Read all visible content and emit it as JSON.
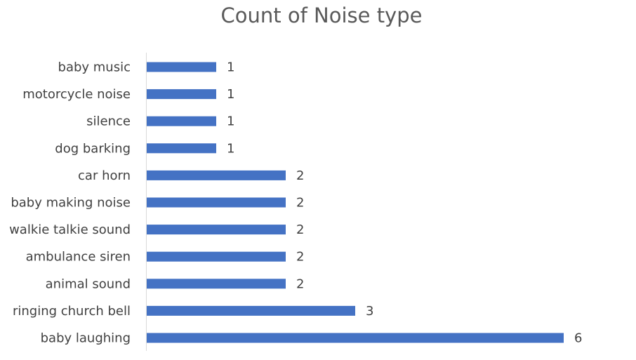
{
  "chart_data": {
    "type": "bar",
    "orientation": "horizontal",
    "title": "Count of Noise type",
    "xlabel": "",
    "ylabel": "",
    "categories": [
      "baby music",
      "motorcycle noise",
      "silence",
      "dog barking",
      "car horn",
      "baby making noise",
      "walkie talkie sound",
      "ambulance siren",
      "animal sound",
      "ringing church bell",
      "baby laughing"
    ],
    "values": [
      1,
      1,
      1,
      1,
      2,
      2,
      2,
      2,
      2,
      3,
      6
    ],
    "xlim": [
      0,
      6
    ],
    "grid": false,
    "legend": "none",
    "data_labels": true,
    "bar_color": "#4472c4",
    "label_color": "#404040",
    "title_color": "#595959",
    "axis_color": "#d9d9d9"
  }
}
